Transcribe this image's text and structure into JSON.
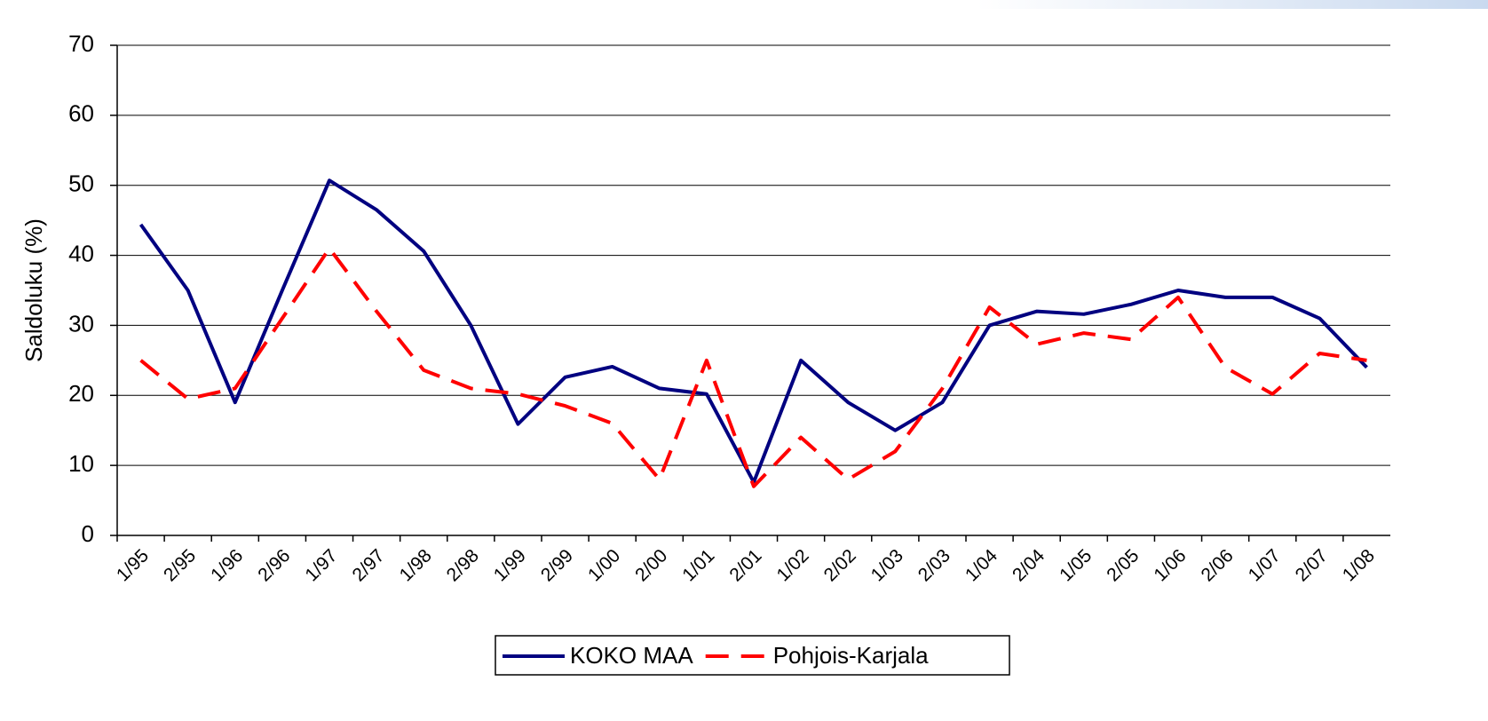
{
  "chart_data": {
    "type": "line",
    "y_label": "Saldoluku (%)",
    "categories": [
      "1/95",
      "2/95",
      "1/96",
      "2/96",
      "1/97",
      "2/97",
      "1/98",
      "2/98",
      "1/99",
      "2/99",
      "1/00",
      "2/00",
      "1/01",
      "2/01",
      "1/02",
      "2/02",
      "1/03",
      "2/03",
      "1/04",
      "2/04",
      "1/05",
      "2/05",
      "1/06",
      "2/06",
      "1/07",
      "2/07",
      "1/08"
    ],
    "series": [
      {
        "name": "KOKO MAA",
        "color": "#000080",
        "dash": false,
        "values": [
          44.4,
          35,
          19,
          35,
          50.7,
          46.5,
          40.6,
          30,
          15.9,
          22.6,
          24.1,
          21,
          20.2,
          7.6,
          25,
          19,
          15,
          19,
          30,
          32,
          31.6,
          33,
          35,
          34,
          34,
          31,
          24
        ]
      },
      {
        "name": "Pohjois-Karjala",
        "color": "#ff0000",
        "dash": true,
        "values": [
          25,
          19.5,
          21,
          31,
          41,
          32,
          23.6,
          21,
          20.2,
          18.5,
          16,
          8,
          25,
          7,
          14,
          8,
          12,
          21,
          32.6,
          27.3,
          28.9,
          28,
          34,
          24,
          20.2,
          26,
          25
        ]
      }
    ],
    "ylim": [
      0,
      70
    ],
    "yticks": [
      0,
      10,
      20,
      30,
      40,
      50,
      60,
      70
    ],
    "grid": true,
    "legend": "bottom"
  }
}
